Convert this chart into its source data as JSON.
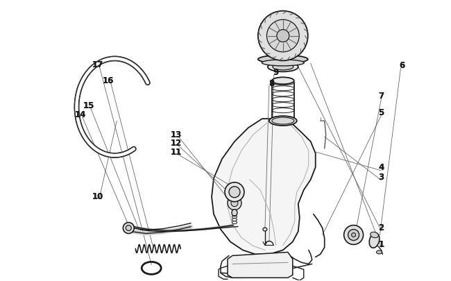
{
  "background_color": "#ffffff",
  "line_color": "#1a1a1a",
  "figsize": [
    6.5,
    4.06
  ],
  "dpi": 100,
  "label_data": [
    [
      1,
      0.845,
      0.87
    ],
    [
      2,
      0.845,
      0.81
    ],
    [
      3,
      0.845,
      0.63
    ],
    [
      4,
      0.845,
      0.595
    ],
    [
      5,
      0.845,
      0.4
    ],
    [
      6,
      0.89,
      0.23
    ],
    [
      7,
      0.845,
      0.34
    ],
    [
      8,
      0.6,
      0.295
    ],
    [
      9,
      0.61,
      0.255
    ],
    [
      10,
      0.215,
      0.7
    ],
    [
      11,
      0.39,
      0.54
    ],
    [
      12,
      0.39,
      0.51
    ],
    [
      13,
      0.39,
      0.48
    ],
    [
      14,
      0.175,
      0.41
    ],
    [
      15,
      0.195,
      0.375
    ],
    [
      16,
      0.24,
      0.285
    ],
    [
      17,
      0.215,
      0.23
    ]
  ]
}
